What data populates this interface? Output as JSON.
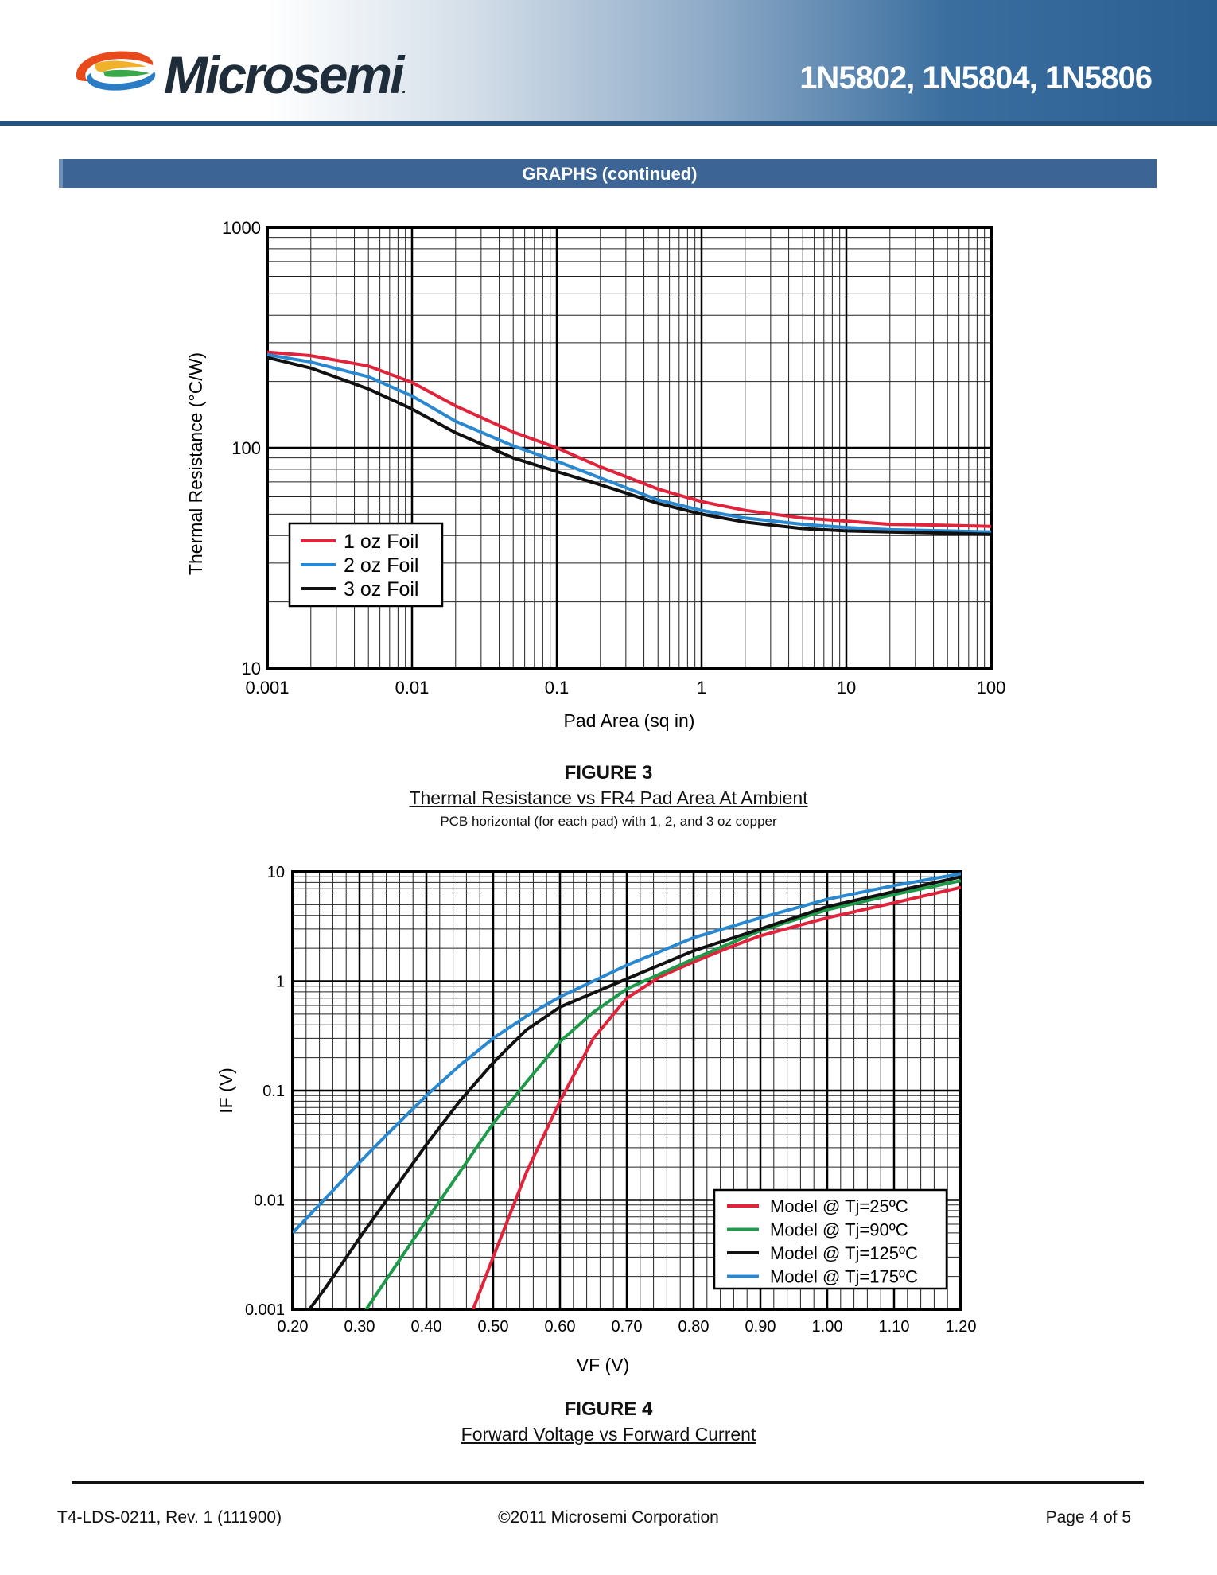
{
  "header": {
    "brand": "Microsemi",
    "brand_mark": ".",
    "part_numbers": "1N5802, 1N5804, 1N5806"
  },
  "section": {
    "title": "GRAPHS (continued)"
  },
  "figure3": {
    "number": "FIGURE 3",
    "title": "Thermal Resistance vs FR4 Pad Area At Ambient",
    "subtitle": "PCB horizontal (for each pad) with 1, 2, and 3 oz copper",
    "chart_data": {
      "type": "line",
      "title": "Thermal Resistance vs FR4 Pad Area At Ambient",
      "xlabel": "Pad Area (sq in)",
      "ylabel": "Thermal Resistance (°C/W)",
      "xscale": "log",
      "yscale": "log",
      "xlim": [
        0.001,
        100
      ],
      "ylim": [
        10,
        1000
      ],
      "xticks": [
        0.001,
        0.01,
        0.1,
        1,
        10,
        100
      ],
      "xtick_labels": [
        "0.001",
        "0.01",
        "0.1",
        "1",
        "10",
        "100"
      ],
      "yticks": [
        10,
        100,
        1000
      ],
      "ytick_labels": [
        "10",
        "100",
        "1000"
      ],
      "grid": true,
      "legend": "center-left",
      "x": [
        0.001,
        0.002,
        0.005,
        0.01,
        0.02,
        0.05,
        0.1,
        0.2,
        0.5,
        1,
        2,
        5,
        10,
        20,
        50,
        100
      ],
      "series": [
        {
          "name": "1 oz Foil",
          "color": "#e0243c",
          "values": [
            272,
            262,
            235,
            198,
            155,
            118,
            100,
            82,
            65,
            57,
            52,
            48,
            46.5,
            45,
            44.5,
            44
          ]
        },
        {
          "name": "2 oz Foil",
          "color": "#2a88d0",
          "values": [
            265,
            245,
            210,
            172,
            132,
            102,
            87,
            73,
            58,
            52,
            48,
            45,
            43.5,
            42.5,
            42,
            41.5
          ]
        },
        {
          "name": "3 oz Foil",
          "color": "#111111",
          "values": [
            257,
            230,
            185,
            150,
            117,
            90,
            78,
            68,
            56,
            50,
            46,
            43,
            42,
            41.5,
            41,
            40.5
          ]
        }
      ]
    }
  },
  "figure4": {
    "number": "FIGURE 4",
    "title": "Forward Voltage vs Forward Current",
    "chart_data": {
      "type": "line",
      "title": "Forward Voltage vs Forward Current",
      "xlabel": "VF (V)",
      "ylabel": "IF (V)",
      "xscale": "linear",
      "yscale": "log",
      "xlim": [
        0.2,
        1.2
      ],
      "ylim": [
        0.001,
        10
      ],
      "xticks": [
        0.2,
        0.3,
        0.4,
        0.5,
        0.6,
        0.7,
        0.8,
        0.9,
        1.0,
        1.1,
        1.2
      ],
      "xtick_labels": [
        "0.20",
        "0.30",
        "0.40",
        "0.50",
        "0.60",
        "0.70",
        "0.80",
        "0.90",
        "1.00",
        "1.10",
        "1.20"
      ],
      "yticks": [
        0.001,
        0.01,
        0.1,
        1,
        10
      ],
      "ytick_labels": [
        "0.001",
        "0.01",
        "0.1",
        "1",
        "10"
      ],
      "grid": true,
      "legend": "bottom-right",
      "series": [
        {
          "name": "Model @ Tj=25ºC",
          "color": "#e0243c",
          "x": [
            0.47,
            0.5,
            0.55,
            0.6,
            0.65,
            0.7,
            0.75,
            0.8,
            0.85,
            0.9,
            1.0,
            1.1,
            1.2
          ],
          "values": [
            0.001,
            0.003,
            0.018,
            0.08,
            0.3,
            0.7,
            1.1,
            1.5,
            2.0,
            2.6,
            3.8,
            5.2,
            7.2
          ]
        },
        {
          "name": "Model @ Tj=90ºC",
          "color": "#1e9a4a",
          "x": [
            0.31,
            0.35,
            0.4,
            0.45,
            0.5,
            0.55,
            0.6,
            0.65,
            0.7,
            0.8,
            0.9,
            1.0,
            1.1,
            1.2
          ],
          "values": [
            0.001,
            0.0023,
            0.0065,
            0.018,
            0.05,
            0.12,
            0.28,
            0.52,
            0.85,
            1.6,
            2.9,
            4.5,
            6.2,
            8.3
          ]
        },
        {
          "name": "Model @ Tj=125ºC",
          "color": "#111111",
          "x": [
            0.225,
            0.25,
            0.3,
            0.35,
            0.4,
            0.45,
            0.5,
            0.55,
            0.6,
            0.7,
            0.8,
            0.9,
            1.0,
            1.1,
            1.2
          ],
          "values": [
            0.001,
            0.0016,
            0.0045,
            0.012,
            0.032,
            0.08,
            0.18,
            0.36,
            0.58,
            1.05,
            1.9,
            3.0,
            4.8,
            6.6,
            9.0
          ]
        },
        {
          "name": "Model @ Tj=175ºC",
          "color": "#2a88d0",
          "x": [
            0.2,
            0.25,
            0.3,
            0.35,
            0.4,
            0.45,
            0.5,
            0.55,
            0.6,
            0.65,
            0.7,
            0.8,
            0.9,
            1.0,
            1.1,
            1.2
          ],
          "values": [
            0.005,
            0.0105,
            0.022,
            0.045,
            0.09,
            0.17,
            0.3,
            0.48,
            0.72,
            1.0,
            1.4,
            2.5,
            3.8,
            5.6,
            7.5,
            9.6
          ]
        }
      ]
    }
  },
  "footer": {
    "doc_id": "T4-LDS-0211, Rev. 1 (111900)",
    "copyright": "©2011 Microsemi Corporation",
    "page": "Page 4 of 5"
  }
}
